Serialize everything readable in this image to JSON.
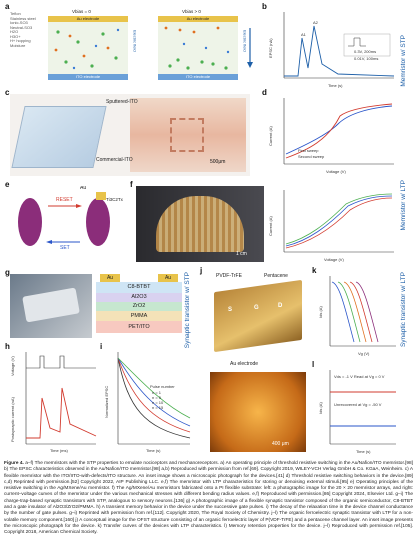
{
  "side_labels": {
    "stp_memristor": "Memristor w/ STP",
    "ltp_memristor": "Memristor w/ LTP",
    "stp_transistor": "Synaptic transistor w/ STP",
    "ltp_transistor": "Synaptic transistor w/ LTP"
  },
  "panels": {
    "a": {
      "letter": "a",
      "legend": [
        "Teflon",
        "Stainless steel",
        "Ionic-SO3",
        "Neutral-SO3",
        "H2O",
        "H3O+",
        "H+ hopping",
        "Moisture"
      ],
      "vtop_left": "Vbias = 0",
      "vtop_right": "Vbias > 0",
      "electrode_top": "Au electrode",
      "electrode_bottom": "ITO electrode",
      "side_text_left": "Electric field",
      "side_text_right": "Electric field"
    },
    "b": {
      "letter": "b",
      "ylabel": "EPSC (nA)",
      "xlabel": "Time (s)",
      "legend_1": "0.3V, 200ms",
      "legend_2": "0.01V, 100ms",
      "peak_label_1": "A1",
      "peak_label_2": "A2"
    },
    "c": {
      "letter": "c",
      "label_sputtered": "Sputtered-ITO",
      "label_commercial": "Commercial-ITO",
      "scalebar": "500μm"
    },
    "d": {
      "letter": "d",
      "ylabel": "Current (A)",
      "xlabel": "Voltage (V)",
      "legend_first": "First sweep",
      "legend_second": "Second sweep"
    },
    "e": {
      "letter": "e",
      "label_top_left": "Au",
      "label_top_right": "Ti3C2Tx",
      "reset": "RESET",
      "set": "SET"
    },
    "f": {
      "letter": "f",
      "scalebar": "1 cm",
      "ylabel": "Current (A)",
      "xlabel": "Voltage (V)"
    },
    "g": {
      "letter": "g",
      "stack_top_left": "Au",
      "stack_top_right": "Au",
      "stack": [
        "C8-BTBT",
        "Al2O3",
        "ZrO2",
        "PMMA",
        "PET/ITO"
      ]
    },
    "h": {
      "letter": "h",
      "ylabel_top": "Voltage (V)",
      "ylabel_bottom": "Postsynaptic current (nA)",
      "xlabel": "Time (ms)"
    },
    "i": {
      "letter": "i",
      "ylabel": "Normalized EPSC",
      "xlabel": "Time (s)",
      "legend": [
        "Pulse number",
        "n = 1",
        "n = 5",
        "n = 10",
        "n = 15"
      ]
    },
    "j": {
      "letter": "j",
      "title_left": "PVDF-TrFE",
      "title_right": "Pentacene",
      "label_bottom": "Au electrode",
      "scalebar": "400 μm",
      "chip_letters": [
        "S",
        "G",
        "D"
      ]
    },
    "k": {
      "letter": "k",
      "ylabel": "Ids (A)",
      "xlabel": "Vg (V)"
    },
    "l": {
      "letter": "l",
      "ylabel": "Ids (A)",
      "xlabel": "Time (s)",
      "note_1": "Vds = -1 V  Read at Vg = 0 V",
      "note_2": "Unrecovered at Vg = -50 V"
    }
  },
  "caption": {
    "lead": "Figure 4.",
    "text": " a–f) The memristors with the STP properties to emulate nociceptors and mechanoreceptors. a) An operating principle of threshold resistive switching in the Au/Nafion/ITO memristor.[98] b) The EPSC characteristics observed in the Au/Nafion/ITO memristor.[98] a,b) Reproduced with permission from ref.[69]. Copyright 2019, WILEY-VCH Verlag GmbH & Co. KGaA, Weinheim. c) A flexible memristor with the ITO/IITO-with-defects/ITO structure. An inset image shows a microscopic photograph for the devices.[41] d) Threshold resistive switching behaviors in the device.[89] c,d) Reprinted with permission.[52] Copyright 2022, AIP Publishing LLC. e,f) The memristor with LTP characteristics for storing or denoising external stimuli.[95] e) Operating principles of the resistive switching in the Ag/MXene/Au memristor. f) The Ag/MXene/Au memristors fabricated onto a PI flexible substrate: left: a photographic image for the 20 × 20 memristor arrays, and right: current–voltage curves of the memristor under the various mechanical stresses with different bending radius values. e,f) Reproduced with permission.[86] Copyright 2024, Elsevier Ltd. g–i) The charge-trap-based synaptic transistors with STP, analogous to sensory neurons.[136] g) A photographic image of a flexible synaptic transistor composed of the organic semiconductor, C8-BTBT and a gate insulator of Al2O3/ZrO2/PMMA. h) A transient memory behavior in the device under the successive gate pulses. i) The decay of the relaxation time in the device channel conductance by the number of gate pulses. g–i) Reprinted with permission from ref.[112]. Copyright 2020, The Royal Society of Chemistry. j–l) The organic ferroelectric synaptic transistor with LTP for a non-volatile memory component.[160] j) A conceptual image for the OFST structure consisting of an organic ferroelectric layer of P(VDF-TrFE) and a pentacene channel layer. An inset image presents the microscopic photograph for the device. k) Transfer curves of the devices with LTP characteristics. l) Memory retention properties for the device. j–l) Reproduced with permission ref.[105]. Copyright 2018, American Chemical Society."
  },
  "colors": {
    "accent_blue": "#1d5fa8",
    "au_yellow": "#e8c34a",
    "ito_blue": "#6aa0d8",
    "flesh_pink": "#c98a78",
    "curve_red": "#d23b2f",
    "curve_blue": "#2a55c9",
    "mxene_purple": "#8b2d7a"
  }
}
